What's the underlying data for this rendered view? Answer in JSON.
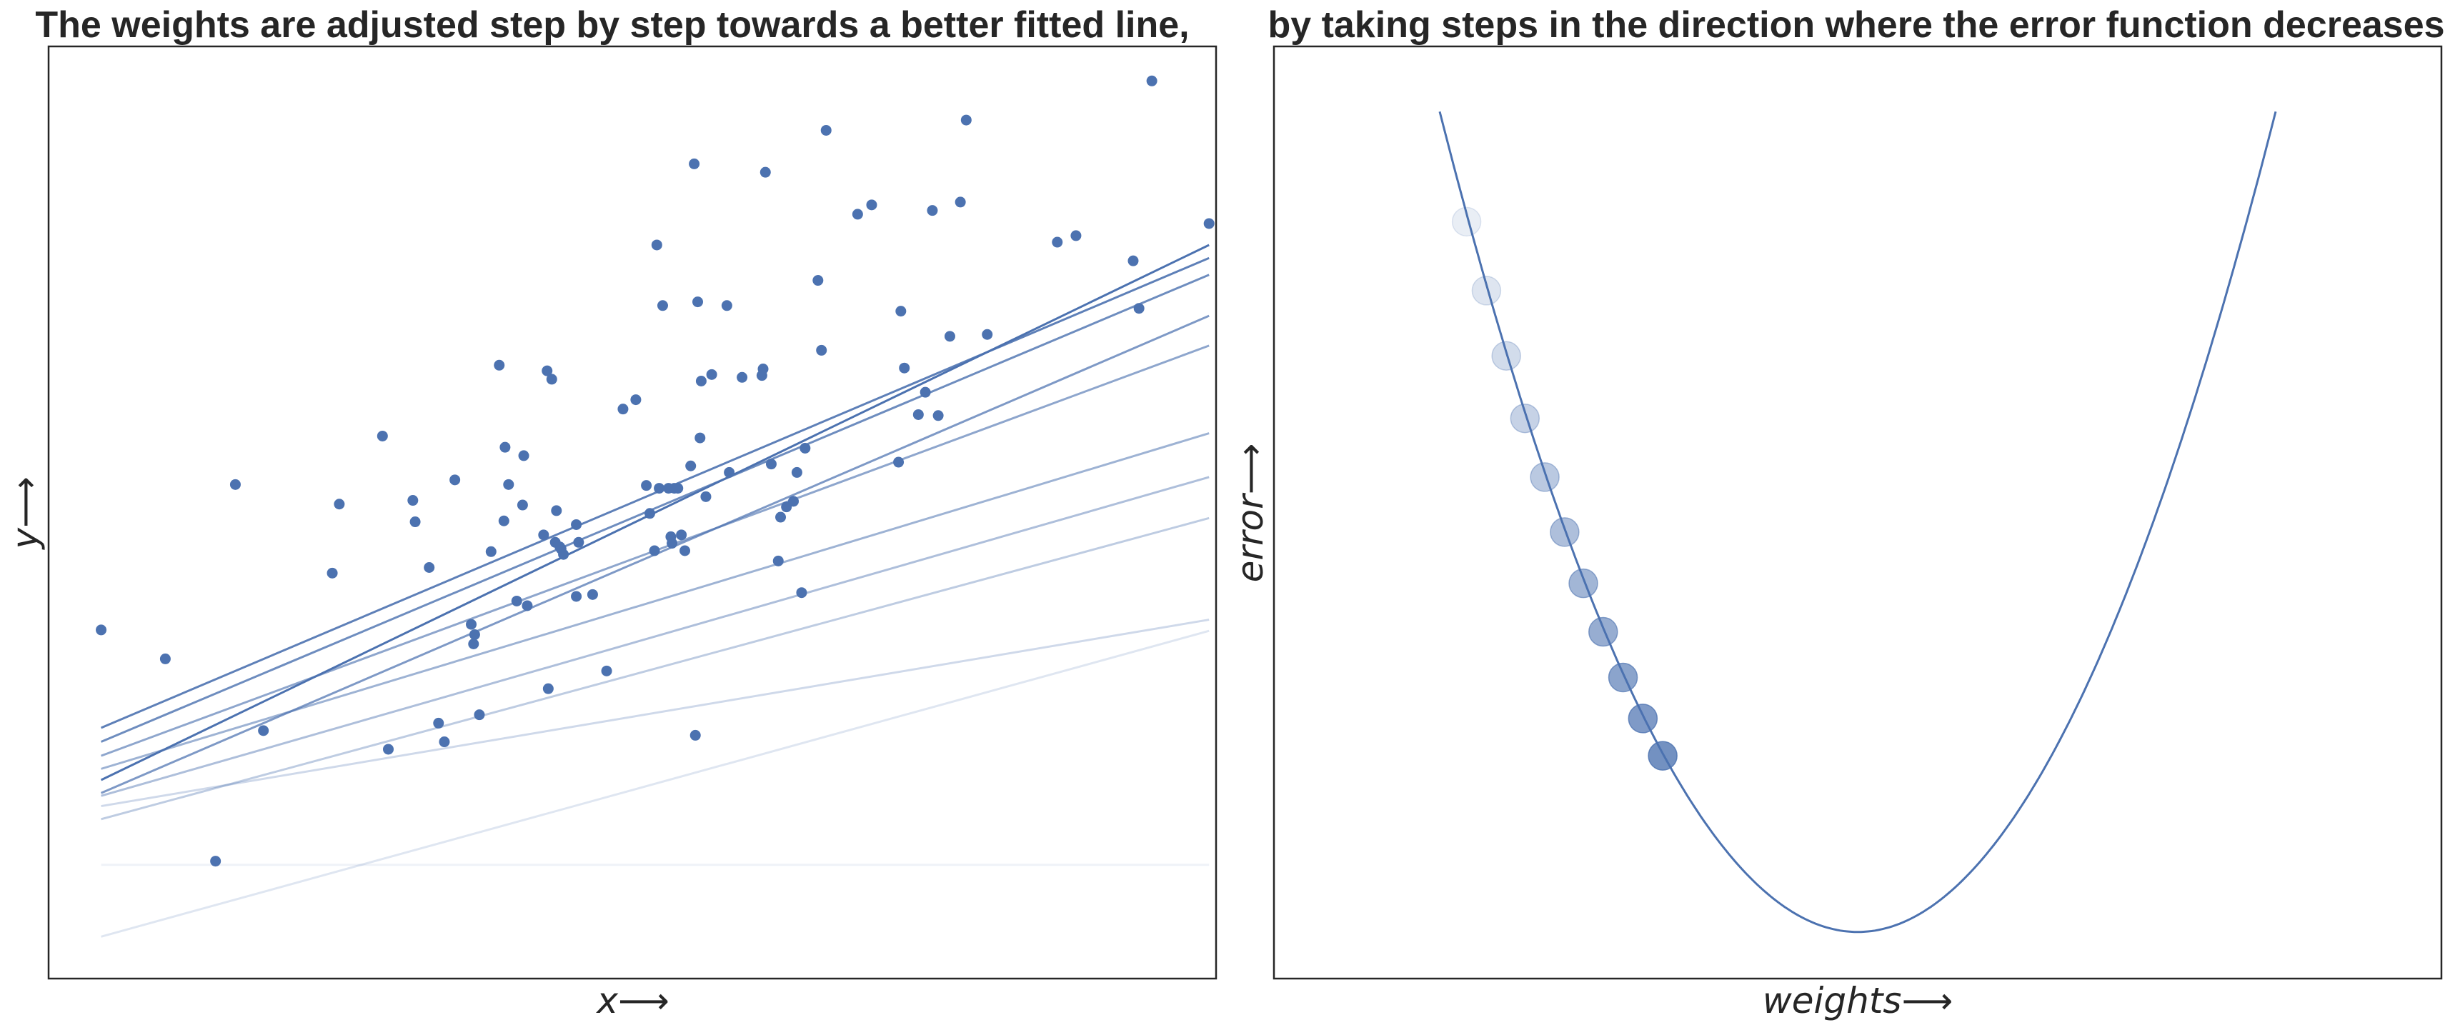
{
  "chart_data": [
    {
      "type": "scatter",
      "title": "The weights are adjusted step by step towards a better fitted line,",
      "xlabel": "x⟶",
      "ylabel": "y⟶",
      "xlim": [
        0,
        1
      ],
      "ylim": [
        0,
        1
      ],
      "ticks": "hidden",
      "grid": false,
      "point_color": "#4c72b0",
      "points": [
        [
          0.045,
          0.374
        ],
        [
          0.1,
          0.343
        ],
        [
          0.143,
          0.126
        ],
        [
          0.16,
          0.53
        ],
        [
          0.184,
          0.266
        ],
        [
          0.243,
          0.435
        ],
        [
          0.249,
          0.509
        ],
        [
          0.286,
          0.582
        ],
        [
          0.291,
          0.246
        ],
        [
          0.312,
          0.513
        ],
        [
          0.314,
          0.49
        ],
        [
          0.326,
          0.441
        ],
        [
          0.334,
          0.274
        ],
        [
          0.339,
          0.254
        ],
        [
          0.348,
          0.535
        ],
        [
          0.362,
          0.38
        ],
        [
          0.364,
          0.359
        ],
        [
          0.365,
          0.369
        ],
        [
          0.369,
          0.283
        ],
        [
          0.379,
          0.458
        ],
        [
          0.386,
          0.658
        ],
        [
          0.39,
          0.491
        ],
        [
          0.391,
          0.57
        ],
        [
          0.394,
          0.53
        ],
        [
          0.401,
          0.405
        ],
        [
          0.406,
          0.508
        ],
        [
          0.407,
          0.561
        ],
        [
          0.41,
          0.4
        ],
        [
          0.424,
          0.476
        ],
        [
          0.427,
          0.652
        ],
        [
          0.428,
          0.311
        ],
        [
          0.431,
          0.643
        ],
        [
          0.434,
          0.468
        ],
        [
          0.435,
          0.502
        ],
        [
          0.438,
          0.463
        ],
        [
          0.439,
          0.461
        ],
        [
          0.441,
          0.455
        ],
        [
          0.452,
          0.41
        ],
        [
          0.452,
          0.487
        ],
        [
          0.454,
          0.468
        ],
        [
          0.466,
          0.412
        ],
        [
          0.478,
          0.33
        ],
        [
          0.492,
          0.611
        ],
        [
          0.503,
          0.621
        ],
        [
          0.512,
          0.529
        ],
        [
          0.515,
          0.499
        ],
        [
          0.519,
          0.459
        ],
        [
          0.521,
          0.787
        ],
        [
          0.523,
          0.526
        ],
        [
          0.526,
          0.722
        ],
        [
          0.531,
          0.526
        ],
        [
          0.533,
          0.474
        ],
        [
          0.534,
          0.467
        ],
        [
          0.536,
          0.526
        ],
        [
          0.539,
          0.526
        ],
        [
          0.542,
          0.476
        ],
        [
          0.545,
          0.459
        ],
        [
          0.55,
          0.55
        ],
        [
          0.553,
          0.874
        ],
        [
          0.554,
          0.261
        ],
        [
          0.556,
          0.726
        ],
        [
          0.558,
          0.58
        ],
        [
          0.559,
          0.641
        ],
        [
          0.563,
          0.517
        ],
        [
          0.568,
          0.648
        ],
        [
          0.581,
          0.722
        ],
        [
          0.583,
          0.543
        ],
        [
          0.594,
          0.645
        ],
        [
          0.611,
          0.647
        ],
        [
          0.612,
          0.654
        ],
        [
          0.614,
          0.865
        ],
        [
          0.619,
          0.552
        ],
        [
          0.625,
          0.448
        ],
        [
          0.627,
          0.495
        ],
        [
          0.632,
          0.506
        ],
        [
          0.638,
          0.512
        ],
        [
          0.641,
          0.543
        ],
        [
          0.645,
          0.414
        ],
        [
          0.648,
          0.569
        ],
        [
          0.659,
          0.749
        ],
        [
          0.662,
          0.674
        ],
        [
          0.666,
          0.91
        ],
        [
          0.693,
          0.82
        ],
        [
          0.705,
          0.83
        ],
        [
          0.728,
          0.554
        ],
        [
          0.73,
          0.716
        ],
        [
          0.733,
          0.655
        ],
        [
          0.745,
          0.605
        ],
        [
          0.751,
          0.629
        ],
        [
          0.757,
          0.824
        ],
        [
          0.762,
          0.604
        ],
        [
          0.772,
          0.689
        ],
        [
          0.781,
          0.833
        ],
        [
          0.786,
          0.921
        ],
        [
          0.804,
          0.691
        ],
        [
          0.864,
          0.79
        ],
        [
          0.88,
          0.797
        ],
        [
          0.929,
          0.77
        ],
        [
          0.934,
          0.719
        ],
        [
          0.945,
          0.963
        ],
        [
          0.994,
          0.81
        ]
      ],
      "lines": [
        {
          "x": [
            0.045,
            0.994
          ],
          "y": [
            0.122,
            0.122
          ],
          "opacity": 0.09
        },
        {
          "x": [
            0.045,
            0.994
          ],
          "y": [
            0.045,
            0.373
          ],
          "opacity": 0.18
        },
        {
          "x": [
            0.045,
            0.994
          ],
          "y": [
            0.185,
            0.385
          ],
          "opacity": 0.27
        },
        {
          "x": [
            0.045,
            0.994
          ],
          "y": [
            0.171,
            0.494
          ],
          "opacity": 0.36
        },
        {
          "x": [
            0.045,
            0.994
          ],
          "y": [
            0.196,
            0.538
          ],
          "opacity": 0.45
        },
        {
          "x": [
            0.045,
            0.994
          ],
          "y": [
            0.225,
            0.585
          ],
          "opacity": 0.54
        },
        {
          "x": [
            0.045,
            0.994
          ],
          "y": [
            0.239,
            0.679
          ],
          "opacity": 0.63
        },
        {
          "x": [
            0.045,
            0.994
          ],
          "y": [
            0.199,
            0.711
          ],
          "opacity": 0.72
        },
        {
          "x": [
            0.045,
            0.994
          ],
          "y": [
            0.254,
            0.755
          ],
          "opacity": 0.81
        },
        {
          "x": [
            0.045,
            0.994
          ],
          "y": [
            0.269,
            0.773
          ],
          "opacity": 0.9
        },
        {
          "x": [
            0.045,
            0.994
          ],
          "y": [
            0.213,
            0.787
          ],
          "opacity": 1.0
        }
      ]
    },
    {
      "type": "line",
      "title": "by taking steps in the direction where the error function decreases",
      "xlabel": "weights⟶",
      "ylabel": "error⟶",
      "xlim": [
        0,
        1
      ],
      "ylim": [
        0,
        1
      ],
      "ticks": "hidden",
      "grid": false,
      "curve": {
        "x_range": [
          0.142,
          0.858
        ],
        "vertex": [
          0.5,
          0.05
        ],
        "end_y": 0.93,
        "color": "#4c72b0"
      },
      "steps": {
        "color": "#4c72b0",
        "points": [
          [
            0.165,
            0.812
          ],
          [
            0.182,
            0.738
          ],
          [
            0.199,
            0.668
          ],
          [
            0.215,
            0.601
          ],
          [
            0.232,
            0.538
          ],
          [
            0.249,
            0.479
          ],
          [
            0.265,
            0.424
          ],
          [
            0.282,
            0.372
          ],
          [
            0.299,
            0.323
          ],
          [
            0.316,
            0.279
          ],
          [
            0.333,
            0.239
          ]
        ],
        "opacity_min": 0.12,
        "opacity_max": 0.78
      }
    }
  ]
}
